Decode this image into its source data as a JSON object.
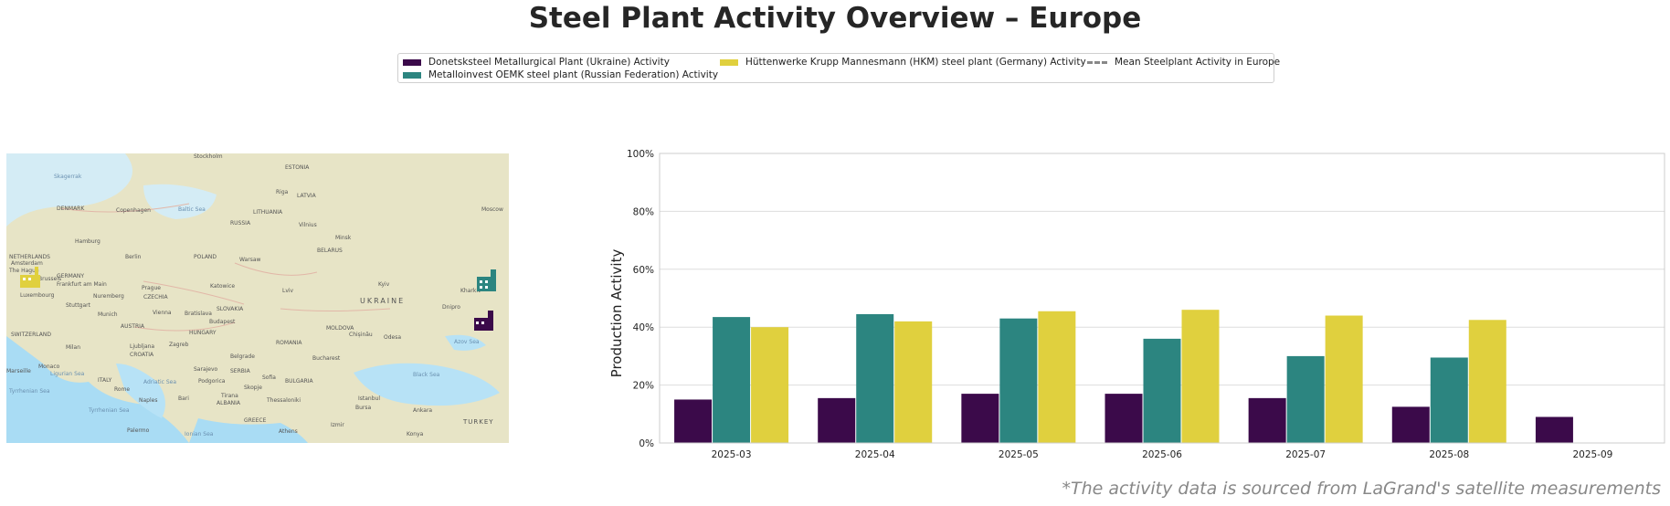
{
  "title": "Steel Plant Activity Overview – Europe",
  "legend": {
    "items": [
      {
        "label": "Donetsksteel Metallurgical Plant (Ukraine) Activity",
        "color": "#3b0a4a",
        "style": "patch"
      },
      {
        "label": "Metalloinvest OEMK steel plant (Russian Federation) Activity",
        "color": "#2c8580",
        "style": "patch"
      },
      {
        "label": "Hüttenwerke Krupp Mannesmann (HKM) steel plant (Germany) Activity",
        "color": "#e0d03e",
        "style": "patch"
      },
      {
        "label": "Mean Steelplant Activity in Europe",
        "color": "#888888",
        "style": "dashed"
      }
    ]
  },
  "map": {
    "labels": {
      "stockholm": "Stockholm",
      "estonia": "ESTONIA",
      "riga": "Riga",
      "latvia": "LATVIA",
      "skagerrak": "Skagerrak",
      "denmark": "DENMARK",
      "copenhagen": "Copenhagen",
      "baltic_sea": "Baltic Sea",
      "russia": "RUSSIA",
      "lithuania": "LITHUANIA",
      "vilnius": "Vilnius",
      "moscow": "Moscow",
      "minsk": "Minsk",
      "hamburg": "Hamburg",
      "berlin": "Berlin",
      "poland": "POLAND",
      "warsaw": "Warsaw",
      "belarus": "BELARUS",
      "germany": "GERMANY",
      "frankfurt": "Frankfurt am Main",
      "prague": "Prague",
      "katowice": "Katowice",
      "lviv": "Lviv",
      "kyiv": "Kyiv",
      "ukraine": "UKRAINE",
      "kharkiv": "Kharkiv",
      "dnipro": "Dnipro",
      "czechia": "CZECHIA",
      "stuttgart": "Stuttgart",
      "munich": "Munich",
      "vienna": "Vienna",
      "bratislava": "Bratislava",
      "slovakia": "SLOVAKIA",
      "luxembourg": "Luxembourg",
      "austria": "AUSTRIA",
      "budapest": "Budapest",
      "hungary": "HUNGARY",
      "moldova": "MOLDOVA",
      "chisinau": "Chișinău",
      "odesa": "Odesa",
      "azov_sea": "Azov Sea",
      "switzerland": "SWITZERLAND",
      "milan": "Milan",
      "ljubljana": "Ljubljana",
      "zagreb": "Zagreb",
      "croatia": "CROATIA",
      "belgrade": "Belgrade",
      "romania": "ROMANIA",
      "bucharest": "Bucharest",
      "monaco": "Monaco",
      "ligurian_sea": "Ligurian Sea",
      "sarajevo": "Sarajevo",
      "serbia": "SERBIA",
      "sofia": "Sofia",
      "bulgaria": "BULGARIA",
      "black_sea": "Black Sea",
      "italy": "ITALY",
      "podgorica": "Podgorica",
      "skopje": "Skopje",
      "rome": "Rome",
      "adriatic_sea": "Adriatic Sea",
      "tyrrhenian_sea": "Tyrrhenian Sea",
      "tirana": "Tirana",
      "thessaloniki": "Thessaloniki",
      "istanbul": "Istanbul",
      "bursa": "Bursa",
      "ankara": "Ankara",
      "naples": "Naples",
      "bari": "Bari",
      "albania": "ALBANIA",
      "greece": "GREECE",
      "izmir": "Izmir",
      "turkey": "TURKEY",
      "palermo": "Palermo",
      "ionian_sea": "Ionian Sea",
      "athens": "Athens",
      "konya": "Konya",
      "marseille": "Marseille",
      "amsterdam": "Amsterdam",
      "the_hague": "The Hague",
      "brussels": "Brussels",
      "nuremberg": "Nuremberg",
      "netherlands": "NETHERLANDS",
      "tyrrhenian_left": "Tyrrhenian Sea"
    }
  },
  "chart_data": {
    "type": "bar",
    "categories": [
      "2025-03",
      "2025-04",
      "2025-05",
      "2025-06",
      "2025-07",
      "2025-08",
      "2025-09"
    ],
    "series": [
      {
        "name": "Donetsksteel Metallurgical Plant (Ukraine) Activity",
        "color": "#3b0a4a",
        "values": [
          15,
          15.5,
          17,
          17,
          15.5,
          12.5,
          9
        ]
      },
      {
        "name": "Metalloinvest OEMK steel plant (Russian Federation) Activity",
        "color": "#2c8580",
        "values": [
          43.5,
          44.5,
          43,
          36,
          30,
          29.5,
          null
        ]
      },
      {
        "name": "Hüttenwerke Krupp Mannesmann (HKM) steel plant (Germany) Activity",
        "color": "#e0d03e",
        "values": [
          40,
          42,
          45.5,
          46,
          44,
          42.5,
          null
        ]
      }
    ],
    "ylabel": "Production Activity",
    "ylim": [
      0,
      100
    ],
    "yticks": [
      "0%",
      "20%",
      "40%",
      "60%",
      "80%",
      "100%"
    ],
    "grid": true
  },
  "footnote": "*The activity data is sourced from LaGrand's satellite measurements"
}
